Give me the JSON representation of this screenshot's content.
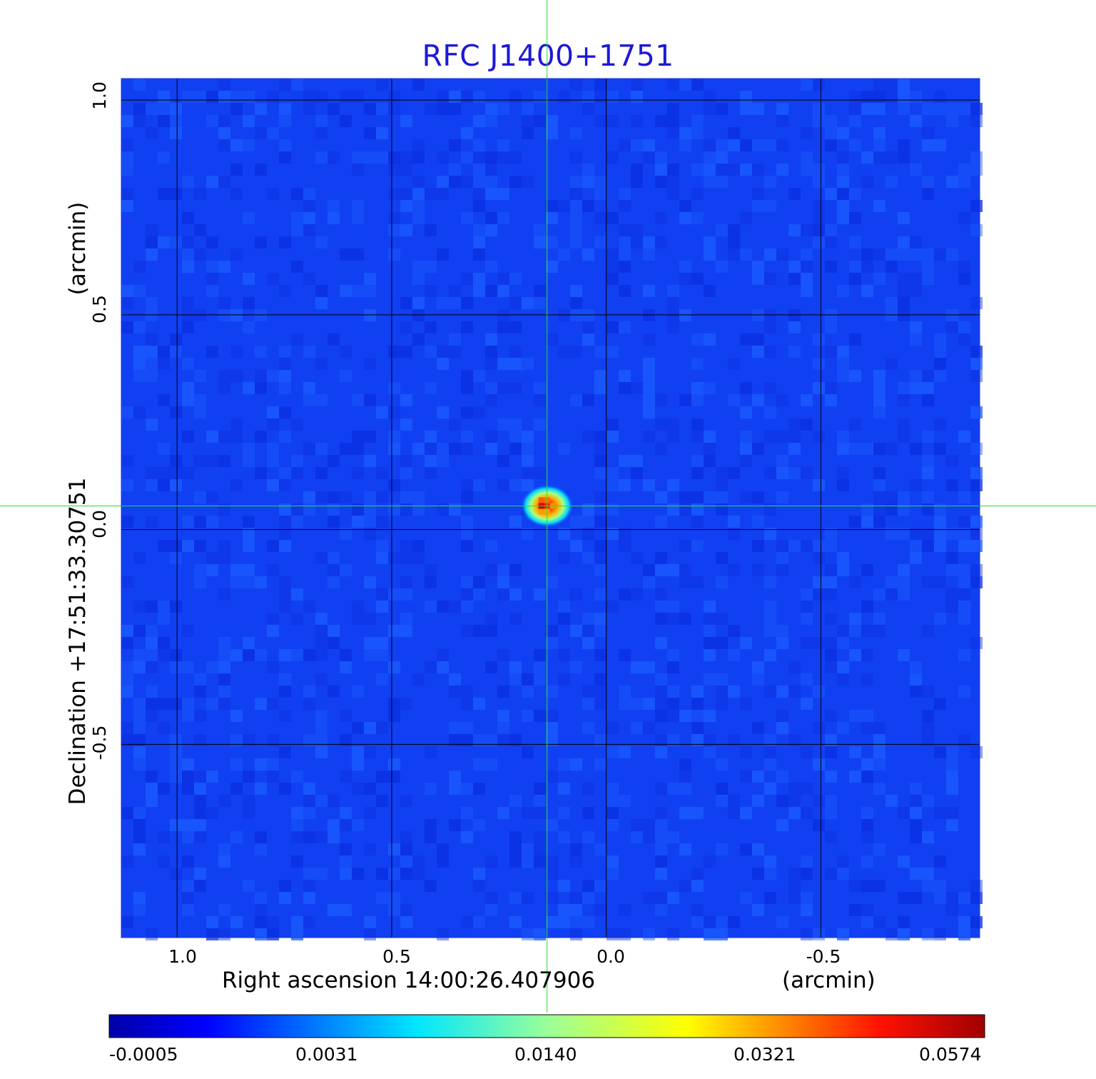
{
  "chart_data": {
    "type": "heatmap",
    "title": "RFC J1400+1751",
    "xlabel": "Right ascension  14:00:26.407906",
    "xunit": "(arcmin)",
    "ylabel": "Declination  +17:51:33.30751",
    "yunit": "(arcmin)",
    "x_ticks": [
      "1.0",
      "0.5",
      "0.0",
      "-0.5"
    ],
    "x_tick_values": [
      1.0,
      0.5,
      0.0,
      -0.5
    ],
    "y_ticks": [
      "1.0",
      "0.5",
      "0.0",
      "-0.5"
    ],
    "y_tick_values": [
      1.0,
      0.5,
      0.0,
      -0.5
    ],
    "xlim": [
      1.13,
      -0.87
    ],
    "ylim": [
      -0.95,
      1.05
    ],
    "grid": true,
    "grid_color": "#000000",
    "crosshair": {
      "x": 0.138,
      "y": 0.055,
      "color": "#22e22a"
    },
    "source": {
      "x": 0.138,
      "y": 0.055,
      "peak": 0.0574
    },
    "colormap": "jet",
    "colorbar_ticks": [
      "-0.0005",
      "0.0031",
      "0.0140",
      "0.0321",
      "0.0574"
    ],
    "colorbar_tick_values": [
      -0.0005,
      0.0031,
      0.014,
      0.0321,
      0.0574
    ],
    "vmin": -0.0005,
    "vmax": 0.0574,
    "background_color": "#1140f2",
    "title_color": "#1d18d6"
  }
}
